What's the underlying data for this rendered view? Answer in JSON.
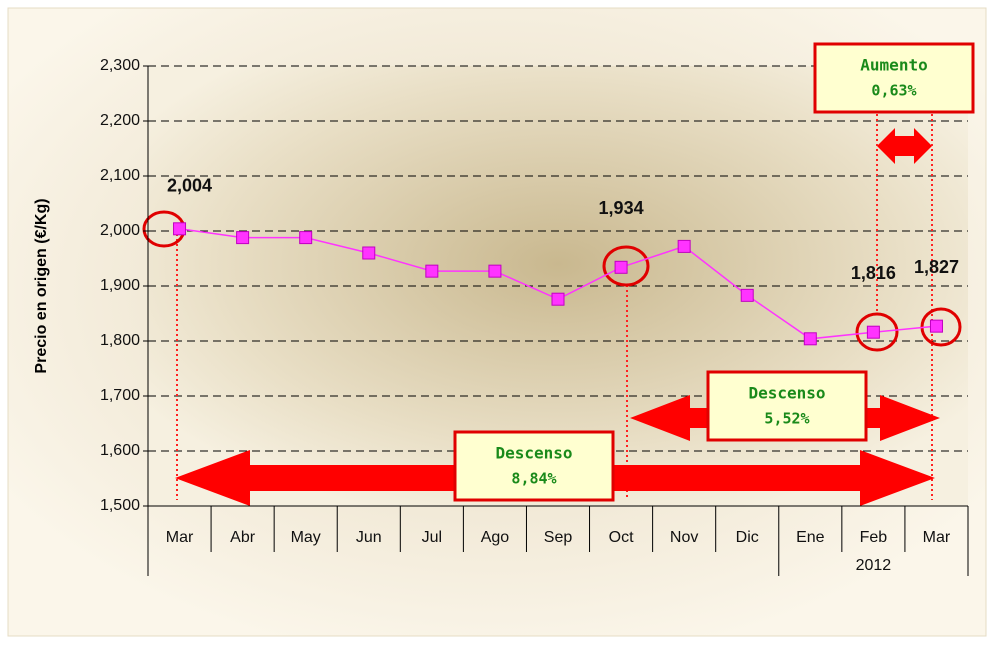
{
  "chart_data": {
    "type": "line",
    "y_label": "Precio en origen (€/Kg)",
    "categories": [
      "Mar",
      "Abr",
      "May",
      "Jun",
      "Jul",
      "Ago",
      "Sep",
      "Oct",
      "Nov",
      "Dic",
      "Ene",
      "Feb",
      "Mar"
    ],
    "year_label": "2012",
    "series": [
      {
        "color": "#ff33ff",
        "values": [
          2004,
          1988,
          1988,
          1960,
          1927,
          1927,
          1876,
          1934,
          1972,
          1883,
          1804,
          1816,
          1827
        ],
        "value_labels": [
          "2,004",
          null,
          null,
          null,
          null,
          null,
          null,
          "1,934",
          null,
          null,
          null,
          "1,816",
          "1,827"
        ]
      }
    ],
    "ylim": [
      1500,
      2300
    ],
    "yticks": [
      {
        "value": 1500,
        "label": "1,500"
      },
      {
        "value": 1600,
        "label": "1,600"
      },
      {
        "value": 1700,
        "label": "1,700"
      },
      {
        "value": 1800,
        "label": "1,800"
      },
      {
        "value": 1900,
        "label": "1,900"
      },
      {
        "value": 2000,
        "label": "2,000"
      },
      {
        "value": 2100,
        "label": "2,100"
      },
      {
        "value": 2200,
        "label": "2,200"
      },
      {
        "value": 2300,
        "label": "2,300"
      }
    ],
    "grid": true,
    "annotations": [
      {
        "title": "Aumento",
        "text": "0,63%"
      },
      {
        "title": "Descenso",
        "text": "5,52%"
      },
      {
        "title": "Descenso",
        "text": "8,84%"
      }
    ]
  }
}
